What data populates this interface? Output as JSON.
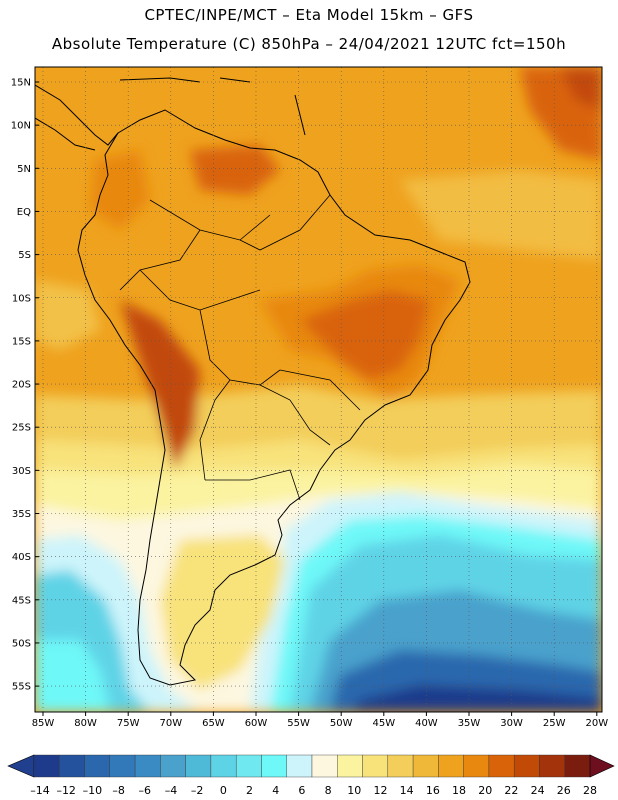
{
  "header": {
    "title_line1": "CPTEC/INPE/MCT –  Eta Model 15km – GFS",
    "title_line2": "Absolute Temperature (C) 850hPa – 24/04/2021 12UTC fct=150h"
  },
  "axes": {
    "lat_labels": [
      "15N",
      "10N",
      "5N",
      "EQ",
      "5S",
      "10S",
      "15S",
      "20S",
      "25S",
      "30S",
      "35S",
      "40S",
      "45S",
      "50S",
      "55S"
    ],
    "lon_labels": [
      "85W",
      "80W",
      "75W",
      "70W",
      "65W",
      "60W",
      "55W",
      "50W",
      "45W",
      "40W",
      "35W",
      "30W",
      "25W",
      "20W"
    ]
  },
  "colorbar": {
    "labels": [
      "-14",
      "-12",
      "-10",
      "-8",
      "-6",
      "-4",
      "-2",
      "0",
      "2",
      "4",
      "6",
      "8",
      "10",
      "12",
      "14",
      "16",
      "18",
      "20",
      "22",
      "24",
      "26",
      "28"
    ],
    "colors": [
      "#1e3a8a",
      "#24529d",
      "#2b67ad",
      "#3279b9",
      "#3a8bc3",
      "#4aa1cc",
      "#4fb9d8",
      "#5fd3e6",
      "#70e8ef",
      "#6ef8f8",
      "#cdf4fb",
      "#fdf7e0",
      "#fbf3a0",
      "#f8e27a",
      "#f3ce5a",
      "#efb838",
      "#efa21e",
      "#e8880f",
      "#d96308",
      "#c24a07",
      "#a2330a",
      "#7a1c0e"
    ],
    "under_color": "#203f8f",
    "over_color": "#6e0f1f"
  },
  "colors": {
    "frame": "#000000",
    "grid": "#555555",
    "coast": "#000000",
    "warm": "#efa21e",
    "hot": "#d96308",
    "mild": "#f3ce5a",
    "cool": "#fbf3a0",
    "cold": "#5fd3e6",
    "deep_cold": "#2b67ad"
  }
}
